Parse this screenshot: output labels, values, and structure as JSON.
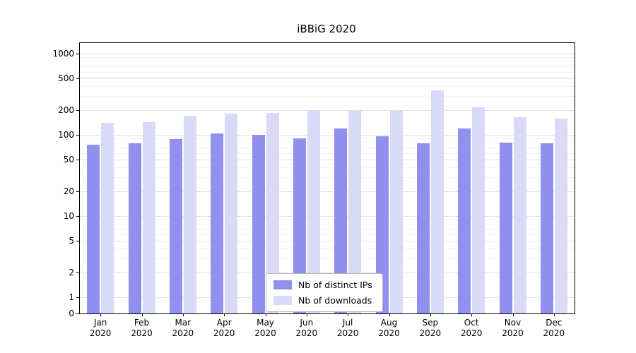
{
  "chart_data": {
    "type": "bar",
    "title": "iBBiG 2020",
    "year_label": "2020",
    "months": [
      "Jan",
      "Feb",
      "Mar",
      "Apr",
      "May",
      "Jun",
      "Jul",
      "Aug",
      "Sep",
      "Oct",
      "Nov",
      "Dec"
    ],
    "yticks": [
      0,
      1,
      2,
      5,
      10,
      20,
      50,
      100,
      200,
      500,
      1000
    ],
    "yscale": "log",
    "grid": true,
    "legend_position": "lower center",
    "series": [
      {
        "name": "Nb of distinct IPs",
        "color": "#9090ee",
        "values": [
          75,
          79,
          88,
          105,
          100,
          90,
          120,
          97,
          78,
          120,
          80,
          78
        ]
      },
      {
        "name": "Nb of downloads",
        "color": "#d9d9f8",
        "values": [
          140,
          142,
          170,
          182,
          185,
          200,
          198,
          197,
          350,
          220,
          165,
          160
        ]
      }
    ]
  }
}
